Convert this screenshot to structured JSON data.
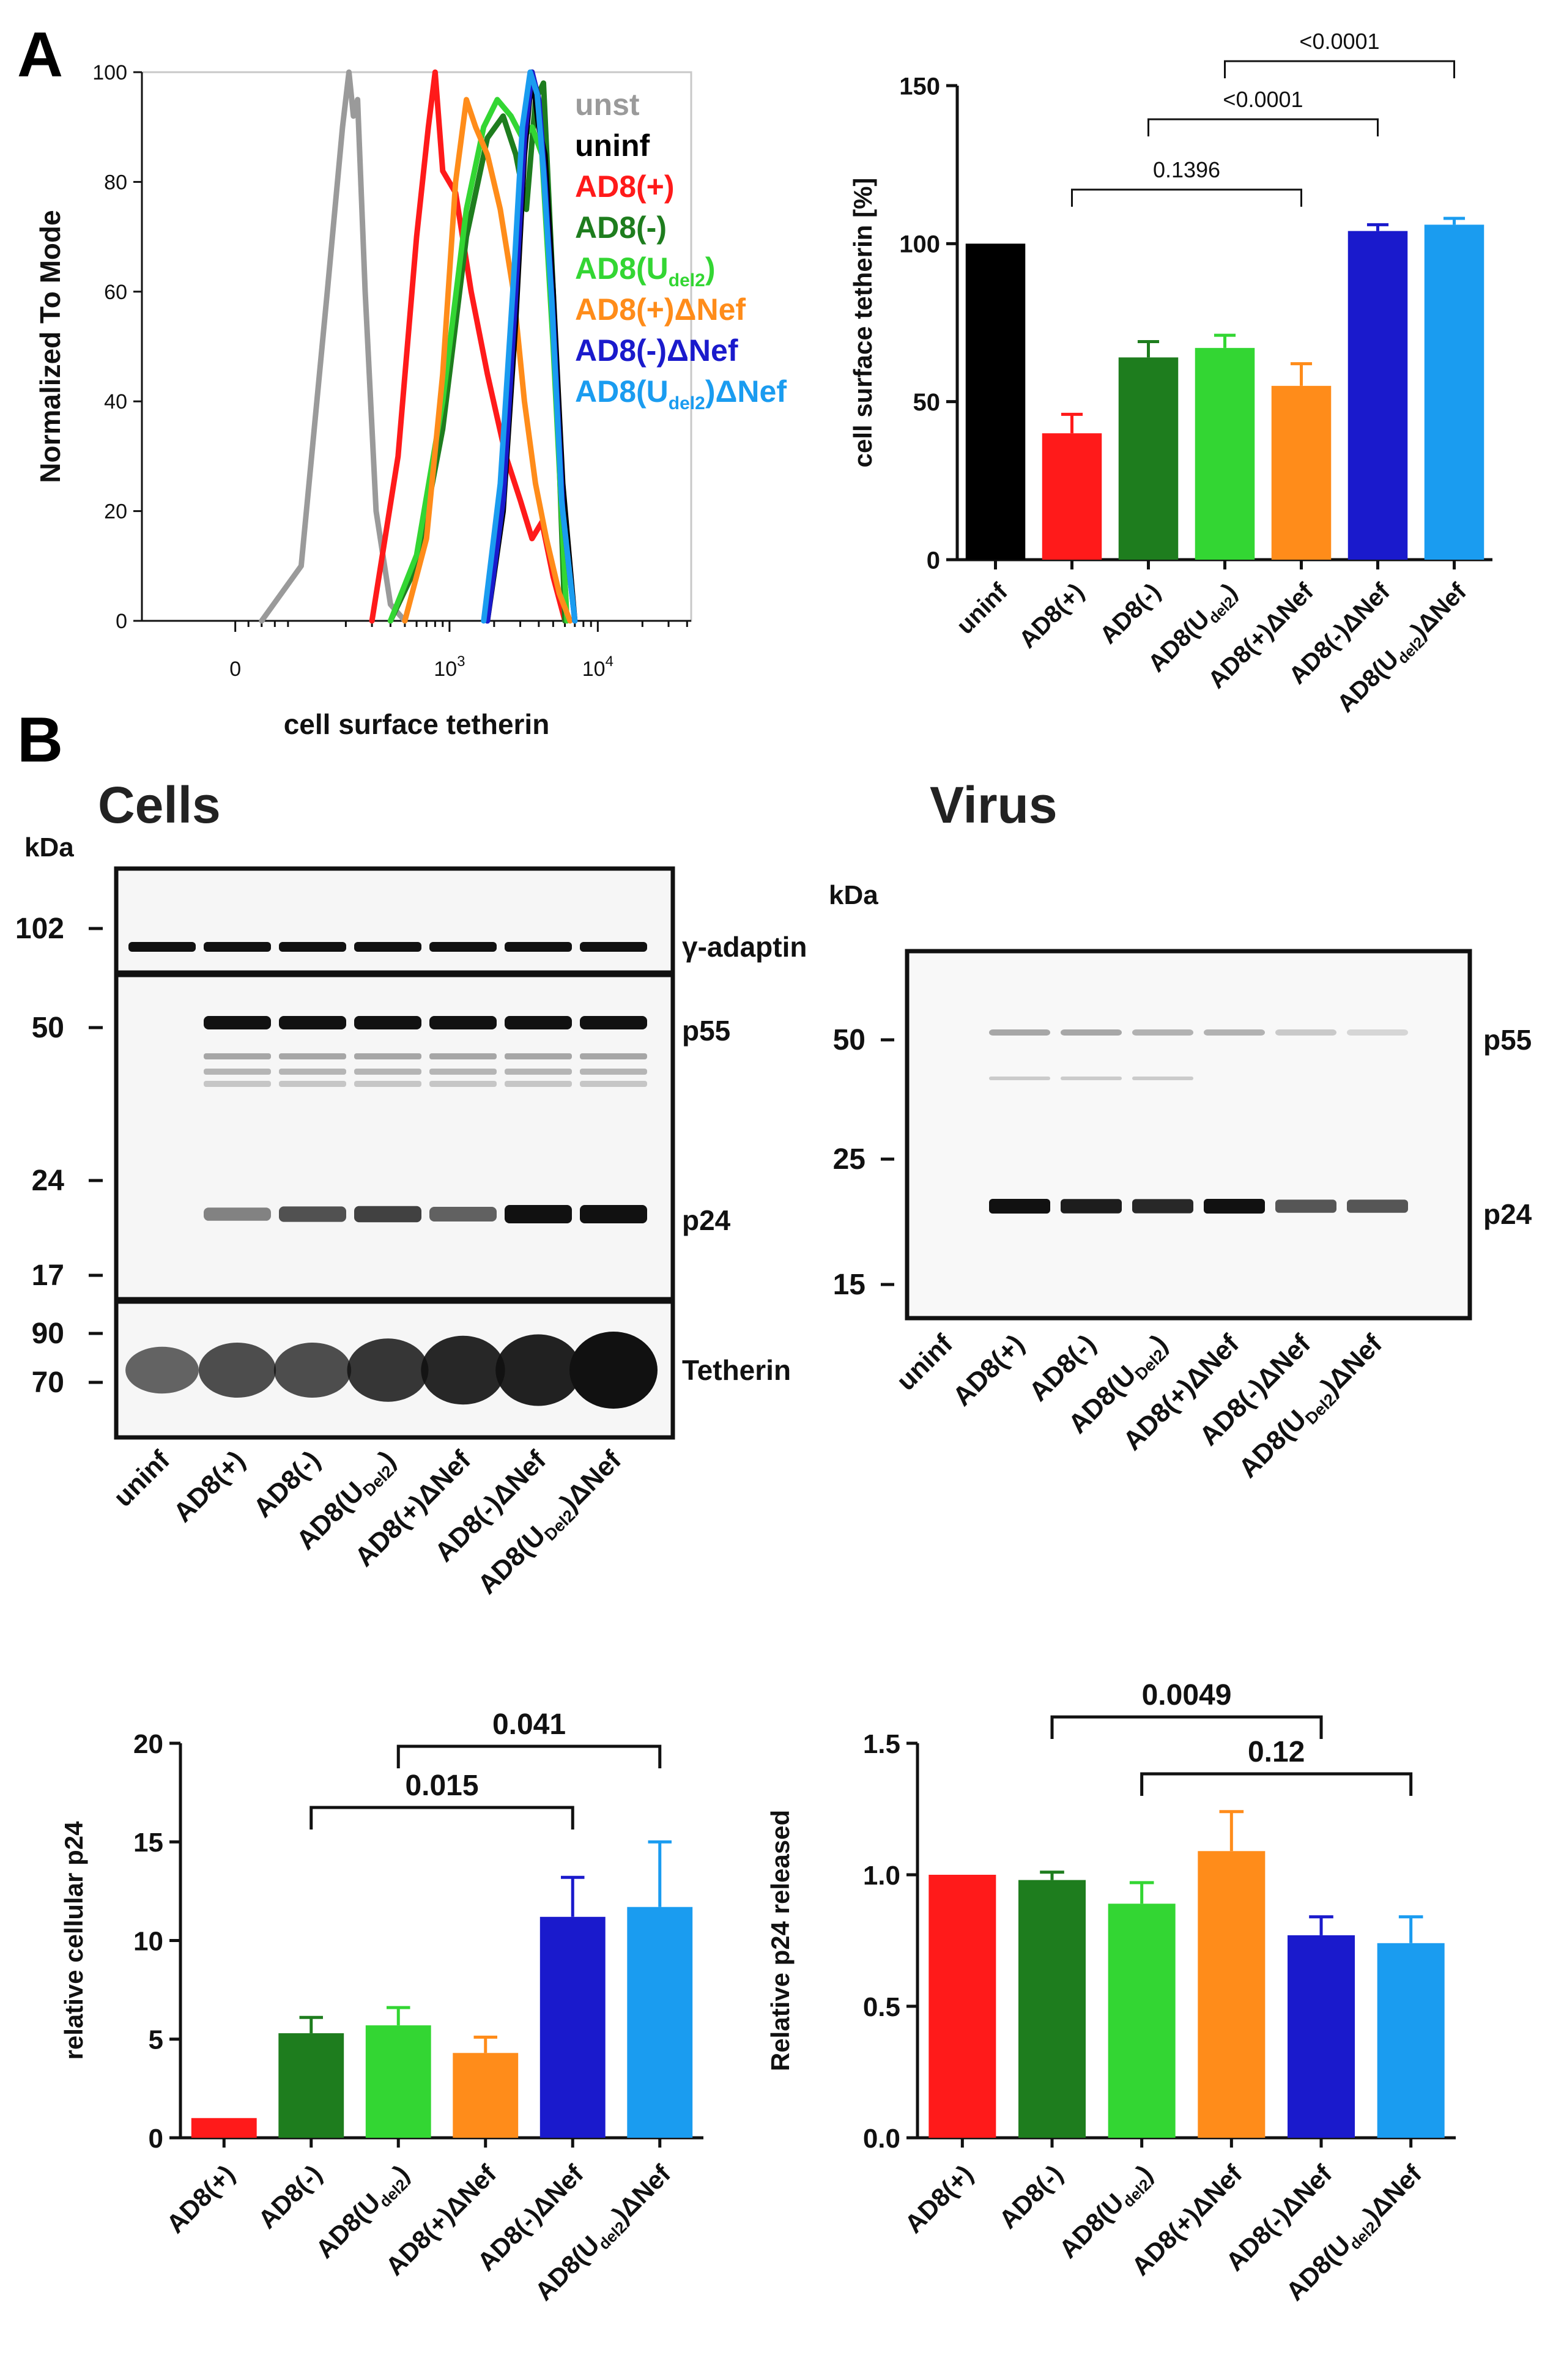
{
  "panel_labels": {
    "a": "A",
    "b": "B"
  },
  "section_titles": {
    "cells": "Cells",
    "virus": "Virus"
  },
  "units": {
    "kda": "kDa"
  },
  "colors": {
    "uninf": "#000000",
    "unst": "#9a9a9a",
    "ad8_plus": "#ff1a1a",
    "ad8_minus": "#1e7d1e",
    "ad8_udel2": "#33d633",
    "ad8_plus_dnef": "#ff8c1a",
    "ad8_minus_dnef": "#1a1acc",
    "ad8_udel2_dnef": "#1a9cf0"
  },
  "chart_data": [
    {
      "id": "histogram",
      "type": "line",
      "title": "",
      "xlabel": "cell surface tetherin",
      "ylabel": "Normalized To Mode",
      "ylim": [
        0,
        100
      ],
      "yticks": [
        "0",
        "20",
        "40",
        "60",
        "80",
        "100"
      ],
      "xscale": "biexponential",
      "xticks": [
        {
          "label": "0",
          "value": 0
        },
        {
          "label": "10",
          "sup": "3",
          "value": 1000
        },
        {
          "label": "10",
          "sup": "4",
          "value": 10000
        }
      ],
      "legend": [
        {
          "label": "unst",
          "color": "#9a9a9a"
        },
        {
          "label": "uninf",
          "color": "#000000"
        },
        {
          "label": "AD8(+)",
          "color": "#ff1a1a"
        },
        {
          "label": "AD8(-)",
          "color": "#1e7d1e"
        },
        {
          "label": "AD8(U",
          "sub": "del2",
          "suffix": ")",
          "color": "#33d633"
        },
        {
          "label": "AD8(+)ΔNef",
          "color": "#ff8c1a"
        },
        {
          "label": "AD8(-)ΔNef",
          "color": "#1a1acc"
        },
        {
          "label": "AD8(U",
          "sub": "del2",
          "suffix": ")ΔNef",
          "color": "#1a9cf0"
        }
      ],
      "series": [
        {
          "name": "unst",
          "color": "#9a9a9a",
          "peak_x": 220,
          "x": [
            40,
            100,
            150,
            190,
            210,
            225,
            240,
            270,
            320,
            400,
            500
          ],
          "y": [
            0,
            10,
            60,
            90,
            100,
            92,
            95,
            60,
            20,
            3,
            0
          ]
        },
        {
          "name": "AD8(+)",
          "color": "#ff1a1a",
          "x": [
            300,
            450,
            600,
            720,
            800,
            900,
            1100,
            1400,
            1800,
            2400,
            3000,
            3600,
            4200,
            5000,
            6000
          ],
          "y": [
            0,
            30,
            70,
            90,
            100,
            82,
            78,
            60,
            45,
            30,
            22,
            15,
            18,
            8,
            0
          ]
        },
        {
          "name": "AD8(-)",
          "color": "#1e7d1e",
          "x": [
            400,
            600,
            900,
            1300,
            1800,
            2300,
            2800,
            3300,
            3800,
            4300,
            5000,
            6000
          ],
          "y": [
            0,
            10,
            35,
            70,
            88,
            92,
            85,
            75,
            95,
            98,
            60,
            0
          ]
        },
        {
          "name": "AD8(Udel2)",
          "color": "#33d633",
          "x": [
            400,
            600,
            900,
            1300,
            1700,
            2100,
            2600,
            3100,
            3600,
            4200,
            5000,
            6200
          ],
          "y": [
            0,
            12,
            40,
            75,
            90,
            95,
            92,
            88,
            90,
            85,
            50,
            0
          ]
        },
        {
          "name": "AD8(+)ΔNef",
          "color": "#ff8c1a",
          "x": [
            500,
            700,
            900,
            1100,
            1300,
            1500,
            1800,
            2200,
            2700,
            3200,
            3800,
            4500,
            5500,
            6500
          ],
          "y": [
            0,
            15,
            45,
            80,
            95,
            90,
            85,
            75,
            60,
            40,
            25,
            15,
            5,
            0
          ]
        },
        {
          "name": "uninf",
          "color": "#000000",
          "x": [
            1800,
            2300,
            2800,
            3200,
            3600,
            4000,
            4400,
            5000,
            5800,
            7000
          ],
          "y": [
            0,
            20,
            55,
            85,
            100,
            90,
            85,
            60,
            25,
            0
          ]
        },
        {
          "name": "AD8(-)ΔNef",
          "color": "#1a1acc",
          "x": [
            1800,
            2300,
            2800,
            3200,
            3600,
            4000,
            4400,
            5000,
            5800,
            7000
          ],
          "y": [
            0,
            22,
            60,
            88,
            100,
            95,
            80,
            55,
            20,
            0
          ]
        },
        {
          "name": "AD8(Udel2)ΔNef",
          "color": "#1a9cf0",
          "x": [
            1700,
            2200,
            2700,
            3100,
            3500,
            3900,
            4300,
            4900,
            5700,
            7000
          ],
          "y": [
            0,
            25,
            62,
            90,
            100,
            96,
            82,
            58,
            22,
            0
          ]
        }
      ]
    },
    {
      "id": "surface_tetherin_bar",
      "type": "bar",
      "title": "",
      "xlabel": "",
      "ylabel": "cell surface tetherin [%]",
      "ylim": [
        0,
        150
      ],
      "yticks": [
        0,
        50,
        100,
        150
      ],
      "categories": [
        "uninf",
        "AD8(+)",
        "AD8(-)",
        "AD8(Udel2)",
        "AD8(+)ΔNef",
        "AD8(-)ΔNef",
        "AD8(Udel2)ΔNef"
      ],
      "category_labels": [
        {
          "pre": "uninf"
        },
        {
          "pre": "AD8(+)"
        },
        {
          "pre": "AD8(-)"
        },
        {
          "pre": "AD8(U",
          "sub": "del2",
          "post": ")"
        },
        {
          "pre": "AD8(+)ΔNef"
        },
        {
          "pre": "AD8(-)ΔNef"
        },
        {
          "pre": "AD8(U",
          "sub": "del2",
          "post": ")ΔNef"
        }
      ],
      "values": [
        100,
        40,
        64,
        67,
        55,
        104,
        106
      ],
      "errors": [
        0,
        6,
        5,
        4,
        7,
        2,
        2
      ],
      "colors": [
        "#000000",
        "#ff1a1a",
        "#1e7d1e",
        "#33d633",
        "#ff8c1a",
        "#1a1acc",
        "#1a9cf0"
      ],
      "annotations": [
        {
          "from": 1,
          "to": 4,
          "text": "0.1396"
        },
        {
          "from": 2,
          "to": 5,
          "text": "<0.0001"
        },
        {
          "from": 3,
          "to": 6,
          "text": "<0.0001"
        }
      ]
    },
    {
      "id": "cellular_p24_bar",
      "type": "bar",
      "title": "",
      "xlabel": "",
      "ylabel": "relative cellular p24",
      "ylim": [
        0,
        20
      ],
      "yticks": [
        0,
        5,
        10,
        15,
        20
      ],
      "categories": [
        "AD8(+)",
        "AD8(-)",
        "AD8(Udel2)",
        "AD8(+)ΔNef",
        "AD8(-)ΔNef",
        "AD8(Udel2)ΔNef"
      ],
      "category_labels": [
        {
          "pre": "AD8(+)"
        },
        {
          "pre": "AD8(-)"
        },
        {
          "pre": "AD8(U",
          "sub": "del2",
          "post": ")"
        },
        {
          "pre": "AD8(+)ΔNef"
        },
        {
          "pre": "AD8(-)ΔNef"
        },
        {
          "pre": "AD8(U",
          "sub": "del2",
          "post": ")ΔNef"
        }
      ],
      "values": [
        1.0,
        5.3,
        5.7,
        4.3,
        11.2,
        11.7
      ],
      "errors": [
        0,
        0.8,
        0.9,
        0.8,
        2.0,
        3.3
      ],
      "colors": [
        "#ff1a1a",
        "#1e7d1e",
        "#33d633",
        "#ff8c1a",
        "#1a1acc",
        "#1a9cf0"
      ],
      "annotations": [
        {
          "from": 1,
          "to": 4,
          "text": "0.015"
        },
        {
          "from": 2,
          "to": 5,
          "text": "0.041"
        }
      ]
    },
    {
      "id": "p24_released_bar",
      "type": "bar",
      "title": "",
      "xlabel": "",
      "ylabel": "Relative p24 released",
      "ylim": [
        0,
        1.5
      ],
      "yticks": [
        "0.0",
        "0.5",
        "1.0",
        "1.5"
      ],
      "categories": [
        "AD8(+)",
        "AD8(-)",
        "AD8(Udel2)",
        "AD8(+)ΔNef",
        "AD8(-)ΔNef",
        "AD8(Udel2)ΔNef"
      ],
      "category_labels": [
        {
          "pre": "AD8(+)"
        },
        {
          "pre": "AD8(-)"
        },
        {
          "pre": "AD8(U",
          "sub": "del2",
          "post": ")"
        },
        {
          "pre": "AD8(+)ΔNef"
        },
        {
          "pre": "AD8(-)ΔNef"
        },
        {
          "pre": "AD8(U",
          "sub": "del2",
          "post": ")ΔNef"
        }
      ],
      "values": [
        1.0,
        0.98,
        0.89,
        1.09,
        0.77,
        0.74
      ],
      "errors": [
        0,
        0.03,
        0.08,
        0.15,
        0.07,
        0.1
      ],
      "colors": [
        "#ff1a1a",
        "#1e7d1e",
        "#33d633",
        "#ff8c1a",
        "#1a1acc",
        "#1a9cf0"
      ],
      "annotations": [
        {
          "from": 1,
          "to": 4,
          "text": "0.0049"
        },
        {
          "from": 2,
          "to": 5,
          "text": "0.12"
        }
      ]
    },
    {
      "id": "western_cells",
      "type": "table",
      "title": "Cells",
      "lanes": [
        {
          "pre": "uninf"
        },
        {
          "pre": "AD8(+)"
        },
        {
          "pre": "AD8(-)"
        },
        {
          "pre": "AD8(U",
          "sub": "Del2",
          "post": ")"
        },
        {
          "pre": "AD8(+)ΔNef"
        },
        {
          "pre": "AD8(-)ΔNef"
        },
        {
          "pre": "AD8(U",
          "sub": "Del2",
          "post": ")ΔNef"
        }
      ],
      "markers": [
        {
          "label": "102",
          "kda": 102
        },
        {
          "label": "50",
          "kda": 50
        },
        {
          "label": "24",
          "kda": 24
        },
        {
          "label": "17",
          "kda": 17
        },
        {
          "label": "90",
          "kda": 90
        },
        {
          "label": "70",
          "kda": 70
        }
      ],
      "bands": [
        {
          "name": "γ-adaptin",
          "intensity": [
            1,
            1,
            1,
            1,
            1,
            1,
            1
          ]
        },
        {
          "name": "p55",
          "intensity": [
            0,
            1,
            1,
            1,
            1,
            1,
            1
          ]
        },
        {
          "name": "p24",
          "intensity": [
            0,
            0.3,
            0.6,
            0.7,
            0.5,
            1,
            1
          ]
        },
        {
          "name": "Tetherin",
          "intensity": [
            0.45,
            0.6,
            0.6,
            0.75,
            0.85,
            0.9,
            1
          ]
        }
      ]
    },
    {
      "id": "western_virus",
      "type": "table",
      "title": "Virus",
      "lanes": [
        {
          "pre": "uninf"
        },
        {
          "pre": "AD8(+)"
        },
        {
          "pre": "AD8(-)"
        },
        {
          "pre": "AD8(U",
          "sub": "Del2",
          "post": ")"
        },
        {
          "pre": "AD8(+)ΔNef"
        },
        {
          "pre": "AD8(-)ΔNef"
        },
        {
          "pre": "AD8(U",
          "sub": "Del2",
          "post": ")ΔNef"
        }
      ],
      "markers": [
        {
          "label": "50",
          "kda": 50
        },
        {
          "label": "25",
          "kda": 25
        },
        {
          "label": "15",
          "kda": 15
        }
      ],
      "bands": [
        {
          "name": "p55",
          "intensity": [
            0,
            0.35,
            0.35,
            0.3,
            0.3,
            0.2,
            0.15
          ]
        },
        {
          "name": "p24",
          "intensity": [
            0,
            1,
            0.95,
            0.9,
            1,
            0.7,
            0.7
          ]
        }
      ]
    }
  ]
}
